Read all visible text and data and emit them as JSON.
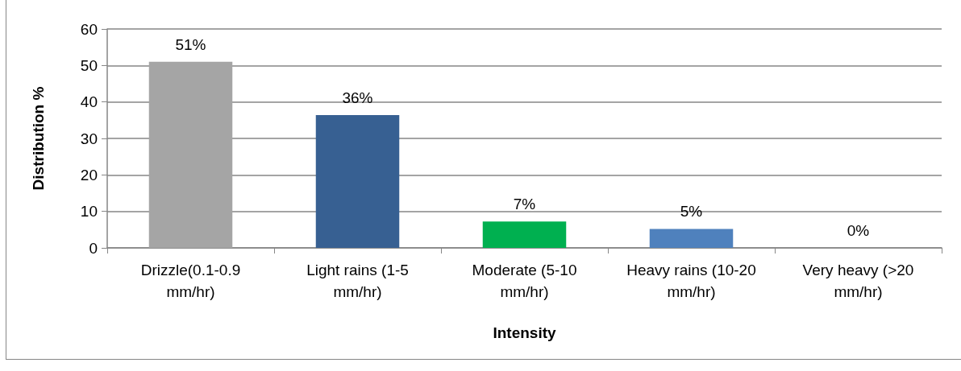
{
  "chart_data": {
    "type": "bar",
    "xlabel": "Intensity",
    "ylabel": "Distribution %",
    "categories": [
      "Drizzle(0.1-0.9 mm/hr)",
      "Light rains (1-5 mm/hr)",
      "Moderate (5-10 mm/hr)",
      "Heavy rains (10-20 mm/hr)",
      "Very heavy (>20 mm/hr)"
    ],
    "values": [
      51,
      36.4,
      7.2,
      5.2,
      0
    ],
    "value_labels": [
      "51%",
      "36%",
      "7%",
      "5%",
      "0%"
    ],
    "colors": [
      "#a5a5a5",
      "#376092",
      "#00b050",
      "#4f81bd",
      null
    ],
    "ylim": [
      0,
      60
    ],
    "yticks": [
      0,
      10,
      20,
      30,
      40,
      50,
      60
    ],
    "grid": "y"
  }
}
